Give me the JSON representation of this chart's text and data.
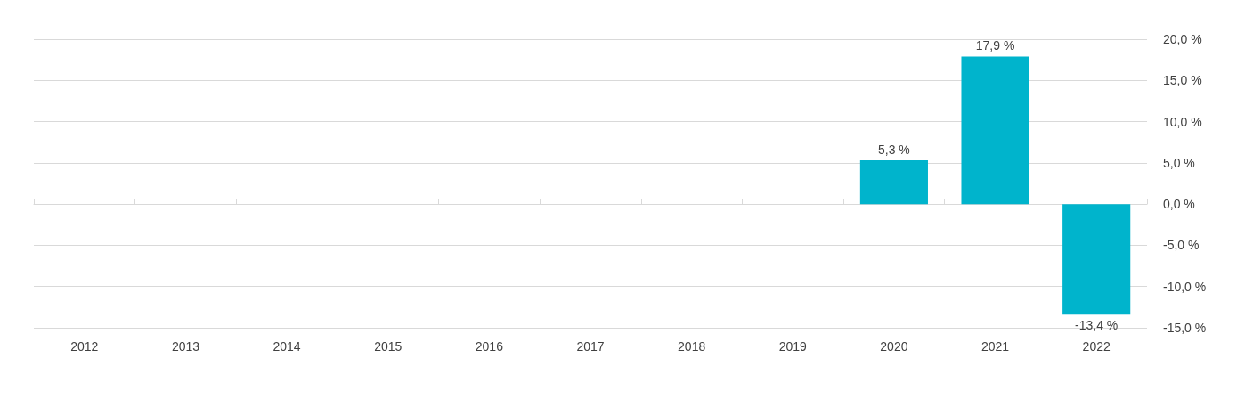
{
  "chart_data": {
    "type": "bar",
    "categories": [
      "2012",
      "2013",
      "2014",
      "2015",
      "2016",
      "2017",
      "2018",
      "2019",
      "2020",
      "2021",
      "2022"
    ],
    "values": [
      null,
      null,
      null,
      null,
      null,
      null,
      null,
      null,
      5.3,
      17.9,
      -13.4
    ],
    "value_labels": [
      null,
      null,
      null,
      null,
      null,
      null,
      null,
      null,
      "5,3 %",
      "17,9 %",
      "-13,4 %"
    ],
    "color": "#00b4cc",
    "ylim": [
      -15,
      20
    ],
    "yticks": [
      {
        "value": -15,
        "label": "-15,0 %"
      },
      {
        "value": -10,
        "label": "-10,0 %"
      },
      {
        "value": -5,
        "label": "-5,0 %"
      },
      {
        "value": 0,
        "label": "0,0 %"
      },
      {
        "value": 5,
        "label": "5,0 %"
      },
      {
        "value": 10,
        "label": "10,0 %"
      },
      {
        "value": 15,
        "label": "15,0 %"
      },
      {
        "value": 20,
        "label": "20,0 %"
      }
    ],
    "grid": "y"
  }
}
